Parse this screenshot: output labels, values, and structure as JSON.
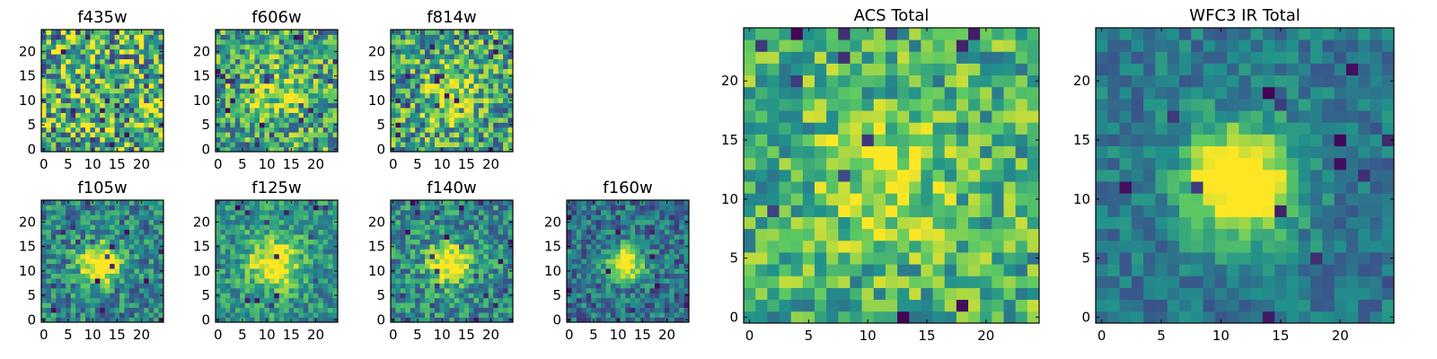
{
  "figure": {
    "colormap": "viridis",
    "colormap_stops": [
      "#440154",
      "#3b528b",
      "#21918c",
      "#5ec962",
      "#fde725"
    ]
  },
  "chart_data": [
    {
      "type": "heatmap",
      "title": "f435w",
      "grid_size": 25,
      "xticks": [
        0,
        5,
        10,
        15,
        20
      ],
      "yticks": [
        0,
        5,
        10,
        15,
        20
      ],
      "xlim": [
        0,
        24
      ],
      "ylim": [
        0,
        24
      ],
      "source_strength": 0.0,
      "sigma": 3.0,
      "noise": 0.9,
      "baseline": 0.62,
      "seed": 11
    },
    {
      "type": "heatmap",
      "title": "f606w",
      "grid_size": 25,
      "xticks": [
        0,
        5,
        10,
        15,
        20
      ],
      "yticks": [
        0,
        5,
        10,
        15,
        20
      ],
      "xlim": [
        0,
        24
      ],
      "ylim": [
        0,
        24
      ],
      "source_strength": 0.25,
      "sigma": 4.0,
      "noise": 0.7,
      "baseline": 0.6,
      "seed": 23
    },
    {
      "type": "heatmap",
      "title": "f814w",
      "grid_size": 25,
      "xticks": [
        0,
        5,
        10,
        15,
        20
      ],
      "yticks": [
        0,
        5,
        10,
        15,
        20
      ],
      "xlim": [
        0,
        24
      ],
      "ylim": [
        0,
        24
      ],
      "source_strength": 0.35,
      "sigma": 3.5,
      "noise": 0.75,
      "baseline": 0.58,
      "seed": 37
    },
    {
      "type": "heatmap",
      "title": "f105w",
      "grid_size": 25,
      "xticks": [
        0,
        5,
        10,
        15,
        20
      ],
      "yticks": [
        0,
        5,
        10,
        15,
        20
      ],
      "xlim": [
        0,
        24
      ],
      "ylim": [
        0,
        24
      ],
      "source_strength": 0.7,
      "sigma": 3.0,
      "noise": 0.5,
      "baseline": 0.45,
      "seed": 41
    },
    {
      "type": "heatmap",
      "title": "f125w",
      "grid_size": 25,
      "xticks": [
        0,
        5,
        10,
        15,
        20
      ],
      "yticks": [
        0,
        5,
        10,
        15,
        20
      ],
      "xlim": [
        0,
        24
      ],
      "ylim": [
        0,
        24
      ],
      "source_strength": 0.6,
      "sigma": 3.5,
      "noise": 0.45,
      "baseline": 0.52,
      "seed": 53
    },
    {
      "type": "heatmap",
      "title": "f140w",
      "grid_size": 25,
      "xticks": [
        0,
        5,
        10,
        15,
        20
      ],
      "yticks": [
        0,
        5,
        10,
        15,
        20
      ],
      "xlim": [
        0,
        24
      ],
      "ylim": [
        0,
        24
      ],
      "source_strength": 0.65,
      "sigma": 3.0,
      "noise": 0.5,
      "baseline": 0.48,
      "seed": 67
    },
    {
      "type": "heatmap",
      "title": "f160w",
      "grid_size": 25,
      "xticks": [
        0,
        5,
        10,
        15,
        20
      ],
      "yticks": [
        0,
        5,
        10,
        15,
        20
      ],
      "xlim": [
        0,
        24
      ],
      "ylim": [
        0,
        24
      ],
      "source_strength": 0.8,
      "sigma": 2.5,
      "noise": 0.45,
      "baseline": 0.38,
      "seed": 79
    },
    {
      "type": "heatmap",
      "title": "ACS Total",
      "grid_size": 25,
      "xticks": [
        0,
        5,
        10,
        15,
        20
      ],
      "yticks": [
        0,
        5,
        10,
        15,
        20
      ],
      "xlim": [
        0,
        24
      ],
      "ylim": [
        0,
        24
      ],
      "source_strength": 0.25,
      "sigma": 4.0,
      "noise": 0.55,
      "baseline": 0.64,
      "seed": 97
    },
    {
      "type": "heatmap",
      "title": "WFC3 IR Total",
      "grid_size": 25,
      "xticks": [
        0,
        5,
        10,
        15,
        20
      ],
      "yticks": [
        0,
        5,
        10,
        15,
        20
      ],
      "xlim": [
        0,
        24
      ],
      "ylim": [
        0,
        24
      ],
      "source_strength": 0.85,
      "sigma": 3.2,
      "noise": 0.3,
      "baseline": 0.4,
      "seed": 131
    }
  ]
}
